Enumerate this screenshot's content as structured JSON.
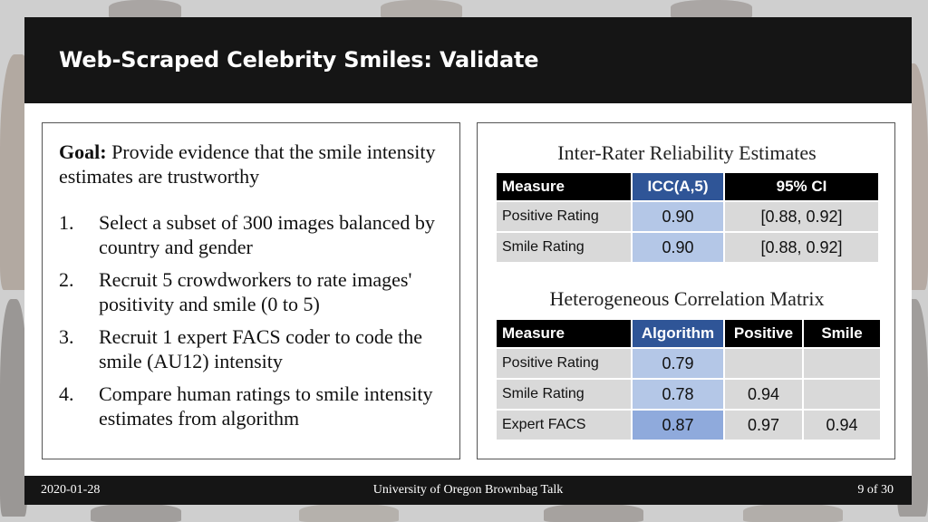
{
  "slide": {
    "title": "Web-Scraped Celebrity Smiles: Validate"
  },
  "left": {
    "goal_label": "Goal:",
    "goal_text": " Provide evidence that the smile intensity estimates are trustworthy",
    "steps": [
      {
        "num": "1.",
        "text": "Select a subset of 300 images balanced by country and gender"
      },
      {
        "num": "2.",
        "text": "Recruit 5 crowdworkers to rate images' positivity and smile (0 to 5)"
      },
      {
        "num": "3.",
        "text": "Recruit 1 expert FACS coder to code the smile (AU12) intensity"
      },
      {
        "num": "4.",
        "text": "Compare human ratings to smile intensity estimates from algorithm"
      }
    ]
  },
  "reliability_table": {
    "title": "Inter-Rater Reliability Estimates",
    "headers": [
      "Measure",
      "ICC(A,5)",
      "95% CI"
    ],
    "rows": [
      {
        "measure": "Positive Rating",
        "icc": "0.90",
        "ci": "[0.88, 0.92]"
      },
      {
        "measure": "Smile Rating",
        "icc": "0.90",
        "ci": "[0.88, 0.92]"
      }
    ]
  },
  "correlation_table": {
    "title": "Heterogeneous Correlation Matrix",
    "headers": [
      "Measure",
      "Algorithm",
      "Positive",
      "Smile"
    ],
    "rows": [
      {
        "measure": "Positive Rating",
        "algorithm": "0.79",
        "positive": "",
        "smile": ""
      },
      {
        "measure": "Smile Rating",
        "algorithm": "0.78",
        "positive": "0.94",
        "smile": ""
      },
      {
        "measure": "Expert FACS",
        "algorithm": "0.87",
        "positive": "0.97",
        "smile": "0.94"
      }
    ]
  },
  "footer": {
    "date": "2020-01-28",
    "center": "University of Oregon Brownbag Talk",
    "page": "9 of 30"
  },
  "colors": {
    "header_bar": "#151515",
    "accent_header": "#2f5597",
    "cell_blue_light": "#b4c7e7",
    "cell_blue_mid": "#8faadc",
    "cell_gray": "#d9d9d9"
  }
}
